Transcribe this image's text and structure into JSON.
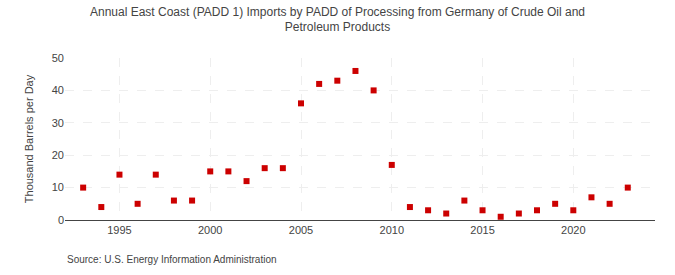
{
  "chart_data": {
    "type": "scatter",
    "title": "Annual East Coast (PADD 1) Imports by PADD of Processing from Germany of Crude Oil and\nPetroleum Products",
    "ylabel": "Thousand Barrels per Day",
    "annotations": [
      "Source: U.S. Energy Information Administration"
    ],
    "x": [
      1993,
      1994,
      1995,
      1996,
      1997,
      1998,
      1999,
      2000,
      2001,
      2002,
      2003,
      2004,
      2005,
      2006,
      2007,
      2008,
      2009,
      2010,
      2011,
      2012,
      2013,
      2014,
      2015,
      2016,
      2017,
      2018,
      2019,
      2020,
      2021,
      2022,
      2023
    ],
    "values": [
      10,
      4,
      14,
      5,
      14,
      6,
      6,
      15,
      15,
      12,
      16,
      16,
      36,
      42,
      43,
      46,
      40,
      17,
      4,
      3,
      2,
      6,
      3,
      1,
      2,
      3,
      5,
      3,
      7,
      5,
      10
    ],
    "color": "#cc0000",
    "marker": "square",
    "xlim": [
      1992,
      2024.5
    ],
    "ylim": [
      0,
      50
    ],
    "xticks": [
      1995,
      2000,
      2005,
      2010,
      2015,
      2020
    ],
    "yticks": [
      0,
      10,
      20,
      30,
      40,
      50
    ],
    "grid": true
  }
}
